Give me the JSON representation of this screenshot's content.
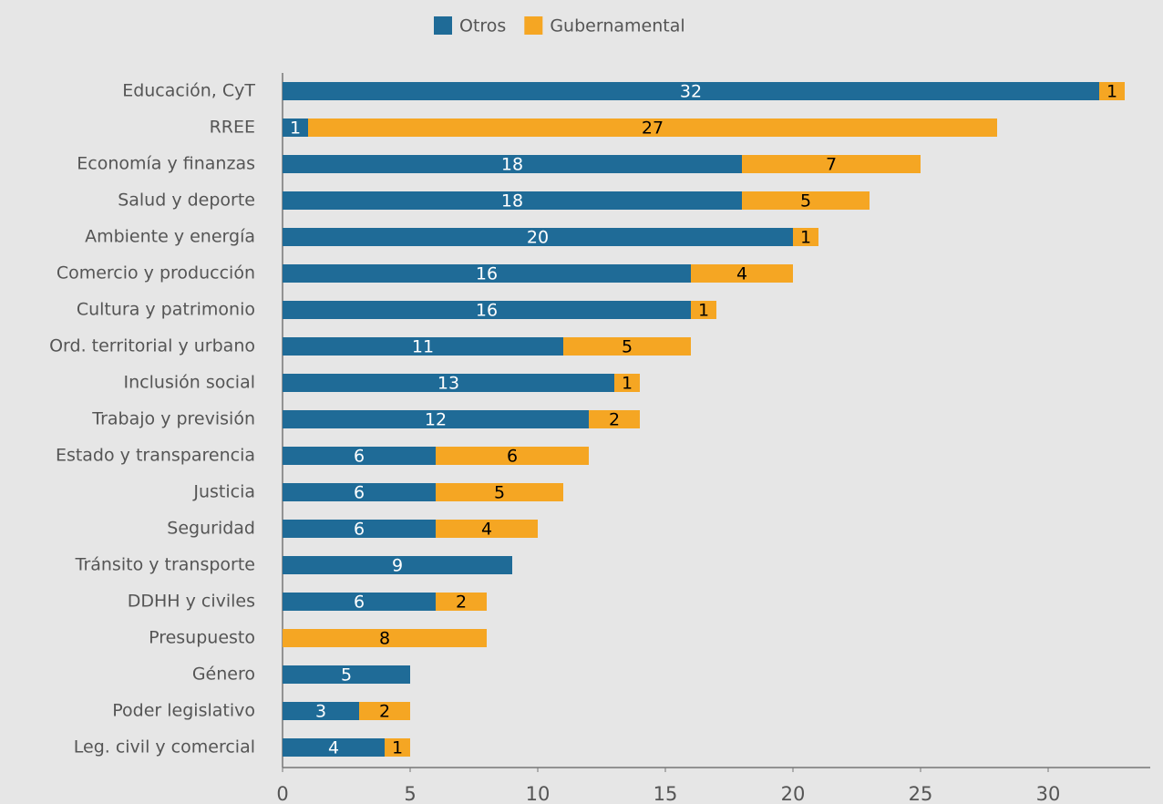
{
  "chart_data": {
    "type": "stacked-bar-horizontal",
    "categories": [
      "Educación, CyT",
      "RREE",
      "Economía y finanzas",
      "Salud y deporte",
      "Ambiente y energía",
      "Comercio y producción",
      "Cultura y patrimonio",
      "Ord. territorial y urbano",
      "Inclusión social",
      "Trabajo y previsión",
      "Estado y transparencia",
      "Justicia",
      "Seguridad",
      "Tránsito y transporte",
      "DDHH y civiles",
      "Presupuesto",
      "Género",
      "Poder legislativo",
      "Leg. civil y comercial"
    ],
    "series": [
      {
        "name": "Otros",
        "color": "#1f6b97",
        "label_color": "#ffffff",
        "values": [
          32,
          1,
          18,
          18,
          20,
          16,
          16,
          11,
          13,
          12,
          6,
          6,
          6,
          9,
          6,
          null,
          5,
          3,
          4
        ]
      },
      {
        "name": "Gubernamental",
        "color": "#f5a623",
        "label_color": "#000000",
        "values": [
          1,
          27,
          7,
          5,
          1,
          4,
          1,
          5,
          1,
          2,
          6,
          5,
          4,
          null,
          2,
          8,
          null,
          2,
          1
        ]
      }
    ],
    "xlim": [
      0,
      34
    ],
    "xticks": [
      0,
      5,
      10,
      15,
      20,
      25,
      30
    ],
    "legend": "top"
  }
}
